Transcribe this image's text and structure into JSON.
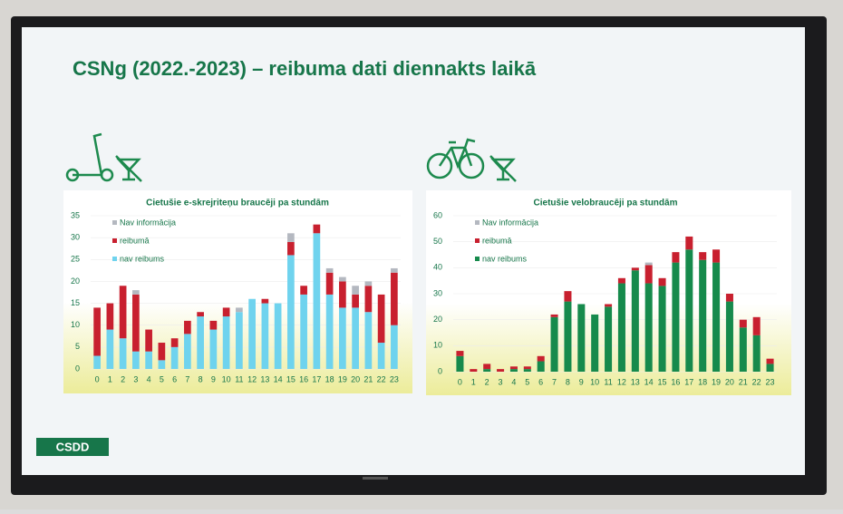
{
  "slide_title": "CSNg (2022.-2023) – reibuma dati diennakts laikā",
  "logo": "CSDD",
  "chart_data": [
    {
      "type": "bar",
      "stacked": true,
      "title": "Cietušie e-skrejriteņu braucēji pa stundām",
      "categories": [
        "0",
        "1",
        "2",
        "3",
        "4",
        "5",
        "6",
        "7",
        "8",
        "9",
        "10",
        "11",
        "12",
        "13",
        "14",
        "15",
        "16",
        "17",
        "18",
        "19",
        "20",
        "21",
        "22",
        "23"
      ],
      "series": [
        {
          "name": "nav reibums",
          "color": "#6fd3ee",
          "values": [
            3,
            9,
            7,
            4,
            4,
            2,
            5,
            8,
            12,
            9,
            12,
            13,
            16,
            15,
            15,
            26,
            17,
            31,
            17,
            14,
            14,
            13,
            6,
            10
          ]
        },
        {
          "name": "reibumā",
          "color": "#c8202f",
          "values": [
            11,
            6,
            12,
            13,
            5,
            4,
            2,
            3,
            1,
            2,
            2,
            0,
            0,
            1,
            0,
            3,
            2,
            2,
            5,
            6,
            3,
            6,
            11,
            12
          ]
        },
        {
          "name": "Nav informācija",
          "color": "#b4b8c0",
          "values": [
            0,
            0,
            0,
            1,
            0,
            0,
            0,
            0,
            0,
            0,
            0,
            1,
            0,
            0,
            0,
            2,
            0,
            0,
            1,
            1,
            2,
            1,
            0,
            1
          ]
        }
      ],
      "ylim": [
        0,
        35
      ],
      "yticks": [
        0,
        5,
        10,
        15,
        20,
        25,
        30,
        35
      ],
      "grid": true
    },
    {
      "type": "bar",
      "stacked": true,
      "title": "Cietušie velobraucēji pa stundām",
      "categories": [
        "0",
        "1",
        "2",
        "3",
        "4",
        "5",
        "6",
        "7",
        "8",
        "9",
        "10",
        "11",
        "12",
        "13",
        "14",
        "15",
        "16",
        "17",
        "18",
        "19",
        "20",
        "21",
        "22",
        "23"
      ],
      "series": [
        {
          "name": "nav reibums",
          "color": "#168a4c",
          "values": [
            6,
            0,
            1,
            0,
            1,
            1,
            4,
            21,
            27,
            26,
            22,
            25,
            34,
            39,
            34,
            33,
            42,
            47,
            43,
            42,
            27,
            17,
            14,
            3
          ]
        },
        {
          "name": "reibumā",
          "color": "#c8202f",
          "values": [
            2,
            1,
            2,
            1,
            1,
            1,
            2,
            1,
            4,
            0,
            0,
            1,
            2,
            1,
            7,
            3,
            4,
            5,
            3,
            5,
            3,
            3,
            7,
            2
          ]
        },
        {
          "name": "Nav informācija",
          "color": "#b4b8c0",
          "values": [
            0,
            0,
            0,
            0,
            0,
            0,
            0,
            0,
            0,
            0,
            0,
            0,
            0,
            0,
            1,
            0,
            0,
            0,
            0,
            0,
            0,
            0,
            0,
            0
          ]
        }
      ],
      "ylim": [
        0,
        60
      ],
      "yticks": [
        0,
        10,
        20,
        30,
        40,
        50,
        60
      ],
      "grid": true
    }
  ]
}
